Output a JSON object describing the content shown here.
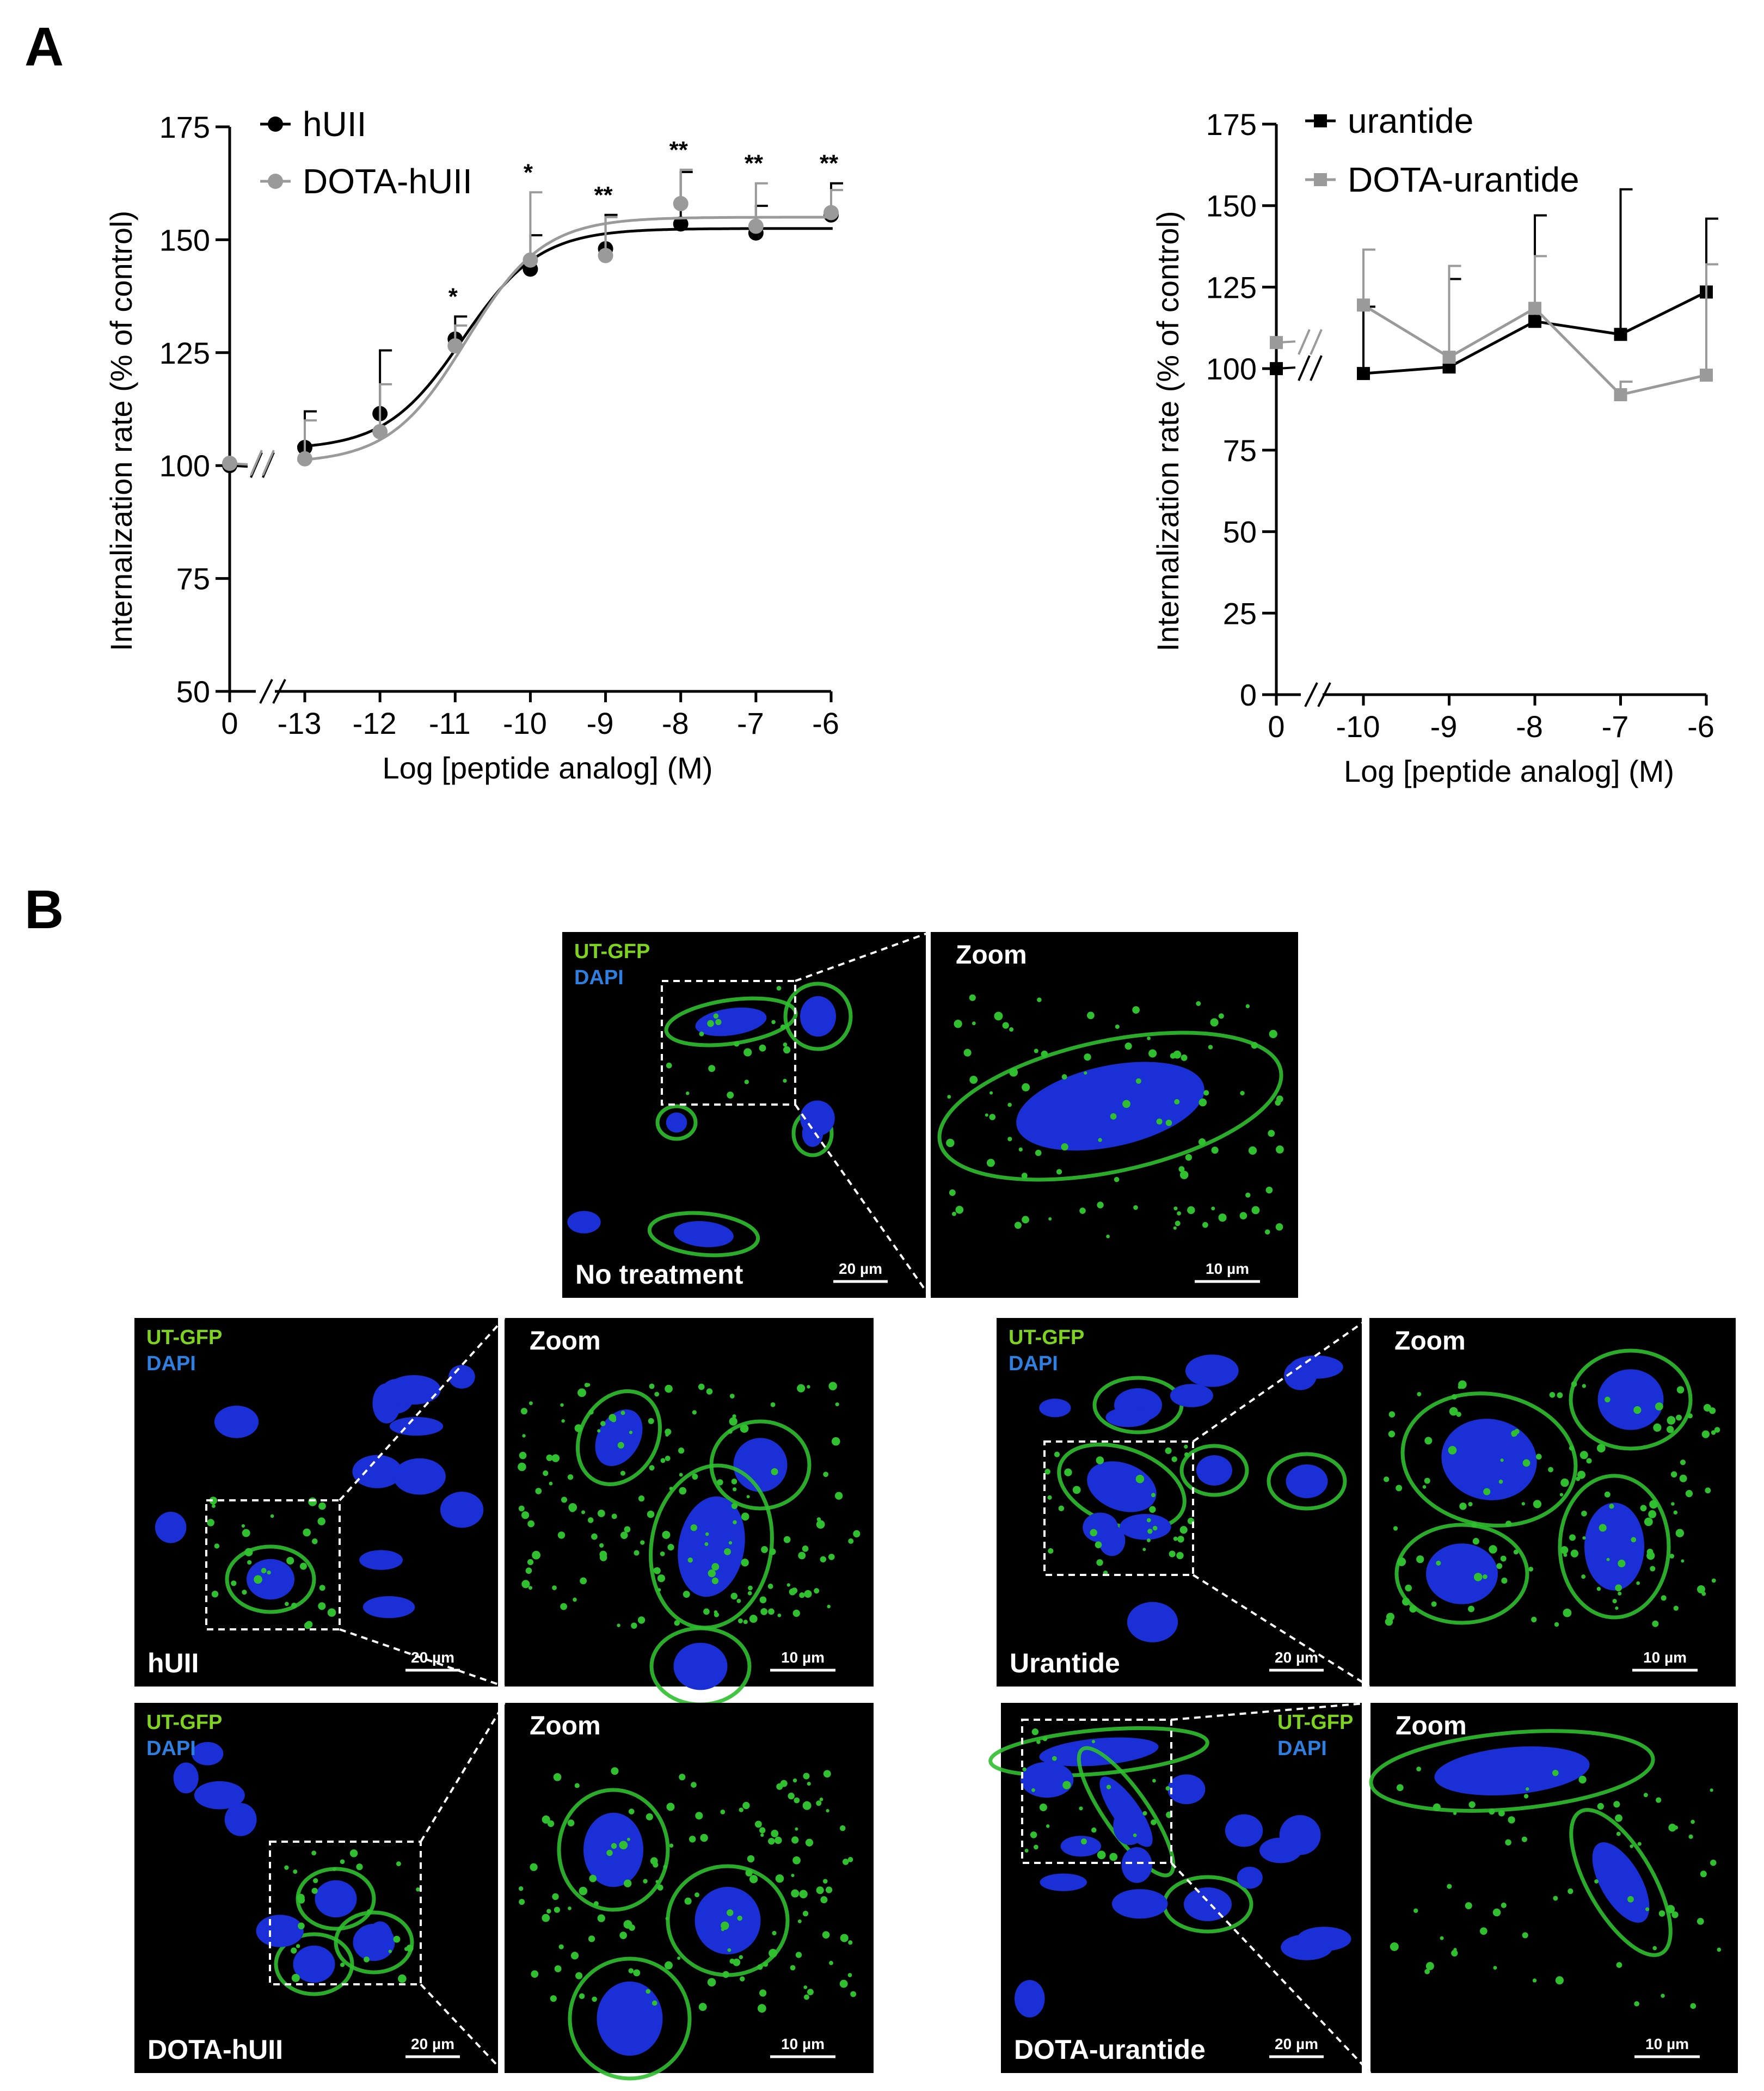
{
  "panel_a": {
    "label": "A"
  },
  "panel_b": {
    "label": "B"
  },
  "colors": {
    "hUII": "#000000",
    "DOTA_hUII": "#9a9a9a",
    "urantide": "#000000",
    "DOTA_urantide": "#9a9a9a",
    "ut_gfp_label": "#7ed321",
    "dapi_label": "#2f7fe0",
    "micrograph_bg": "#000000",
    "cell_green": "#2fbf2f",
    "nucleus_blue": "#1b2fd6"
  },
  "chart_data": [
    {
      "type": "line",
      "xlabel": "Log [peptide  analog]  (M)",
      "ylabel": "Internalization  rate  (% of control)",
      "x_tick_labels": [
        "0",
        "-13",
        "-12",
        "-11",
        "-10",
        "-9",
        "-8",
        "-7",
        "-6"
      ],
      "x_values": [
        -13,
        -12,
        -11,
        -10,
        -9,
        -8,
        -7,
        -6
      ],
      "control_x_label": "0",
      "y_tick_labels": [
        "50",
        "75",
        "100",
        "125",
        "150",
        "175"
      ],
      "ylim": [
        50,
        175
      ],
      "axis_breaks": true,
      "legend_position": "top-left",
      "series": [
        {
          "name": "hUII",
          "marker": "circle",
          "color": "#000000",
          "control": 100,
          "values": [
            104,
            111.5,
            128,
            143.5,
            148,
            153.5,
            151.5,
            155.5
          ],
          "error_upper": [
            112,
            125.5,
            133,
            151,
            155.5,
            165,
            157.5,
            162.5
          ],
          "fit": "sigmoid",
          "fit_bottom": 103.5,
          "fit_top": 152.5,
          "fit_logec50": -10.9,
          "fit_hill": 0.85
        },
        {
          "name": "DOTA-hUII",
          "marker": "circle",
          "color": "#9a9a9a",
          "control": 100.5,
          "values": [
            101.5,
            107.5,
            126.5,
            145.5,
            146.5,
            158,
            153,
            156
          ],
          "error_upper": [
            110,
            118,
            131,
            160.5,
            155,
            165.5,
            162.5,
            161
          ],
          "fit": "sigmoid",
          "fit_bottom": 100.5,
          "fit_top": 155,
          "fit_logec50": -10.85,
          "fit_hill": 0.85
        }
      ],
      "significance": [
        "",
        "",
        "*",
        "*",
        "**",
        "**",
        "**",
        "**"
      ]
    },
    {
      "type": "line",
      "xlabel": "Log [peptide  analog]  (M)",
      "ylabel": "Internalization  rate  (% of control)",
      "x_tick_labels": [
        "0",
        "-10",
        "-9",
        "-8",
        "-7",
        "-6"
      ],
      "x_values": [
        -10,
        -9,
        -8,
        -7,
        -6
      ],
      "control_x_label": "0",
      "y_tick_labels": [
        "0",
        "25",
        "50",
        "75",
        "100",
        "125",
        "150",
        "175"
      ],
      "ylim": [
        0,
        175
      ],
      "axis_breaks": true,
      "legend_position": "top-left",
      "series": [
        {
          "name": "urantide",
          "marker": "square",
          "color": "#000000",
          "control": 100,
          "values": [
            98.5,
            100.5,
            114.5,
            110.5,
            123.5
          ],
          "error_upper": [
            119,
            127.5,
            147,
            155,
            146
          ]
        },
        {
          "name": "DOTA-urantide",
          "marker": "square",
          "color": "#9a9a9a",
          "control": 108,
          "values": [
            119.5,
            103.5,
            118.5,
            92,
            98
          ],
          "error_upper": [
            136.5,
            131.5,
            134.5,
            96,
            132
          ]
        }
      ]
    }
  ],
  "micrographs": [
    {
      "channel1": "UT-GFP",
      "channel2": "DAPI",
      "condition": "No treatment",
      "scale": "20 µm",
      "zoom_label": "Zoom",
      "zoom_scale": "10 µm"
    },
    {
      "channel1": "UT-GFP",
      "channel2": "DAPI",
      "condition": "hUII",
      "scale": "20 µm",
      "zoom_label": "Zoom",
      "zoom_scale": "10 µm"
    },
    {
      "channel1": "UT-GFP",
      "channel2": "DAPI",
      "condition": "Urantide",
      "scale": "20 µm",
      "zoom_label": "Zoom",
      "zoom_scale": "10 µm"
    },
    {
      "channel1": "UT-GFP",
      "channel2": "DAPI",
      "condition": "DOTA-hUII",
      "scale": "20 µm",
      "zoom_label": "Zoom",
      "zoom_scale": "10 µm"
    },
    {
      "channel1": "UT-GFP",
      "channel2": "DAPI",
      "condition": "DOTA-urantide",
      "scale": "20 µm",
      "zoom_label": "Zoom",
      "zoom_scale": "10 µm"
    }
  ]
}
